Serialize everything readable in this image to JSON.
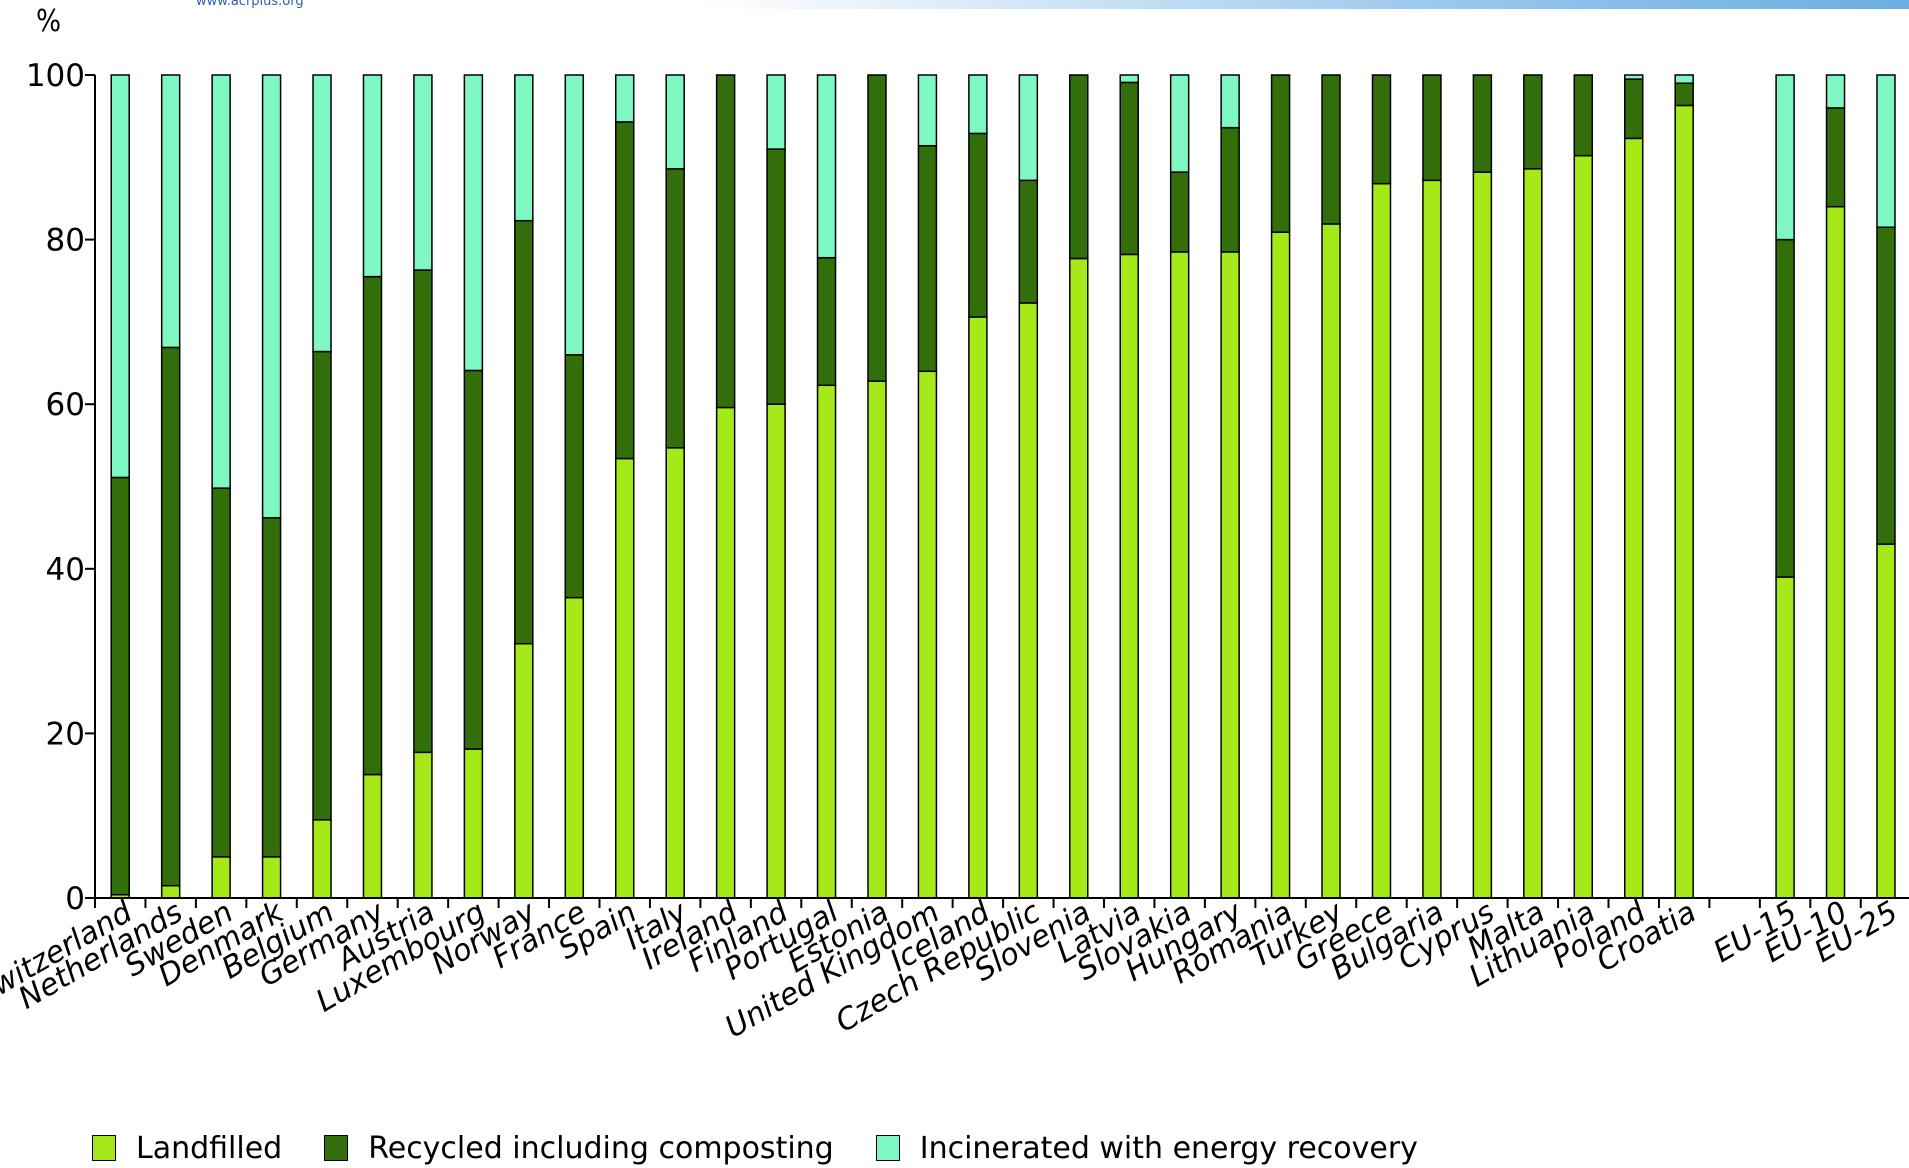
{
  "header": {
    "url": "www.acrplus.org"
  },
  "colors": {
    "landfilled": "#a5ea18",
    "recycled": "#326e0a",
    "incinerated": "#7ff7c2"
  },
  "chart_data": {
    "type": "bar",
    "stacked": true,
    "ylabel": "%",
    "ylim": [
      0,
      100
    ],
    "yticks": [
      0,
      20,
      40,
      60,
      80,
      100
    ],
    "grid": false,
    "legend_position": "bottom",
    "categories": [
      "Switzerland",
      "Netherlands",
      "Sweden",
      "Denmark",
      "Belgium",
      "Germany",
      "Austria",
      "Luxembourg",
      "Norway",
      "France",
      "Spain",
      "Italy",
      "Ireland",
      "Finland",
      "Portugal",
      "Estonia",
      "United Kingdom",
      "Iceland",
      "Czech Republic",
      "Slovenia",
      "Latvia",
      "Slovakia",
      "Hungary",
      "Romania",
      "Turkey",
      "Greece",
      "Bulgaria",
      "Cyprus",
      "Malta",
      "Lithuania",
      "Poland",
      "Croatia",
      "",
      "EU-15",
      "EU-10",
      "EU-25"
    ],
    "series": [
      {
        "name": "Landfilled",
        "values": [
          0.4,
          1.5,
          5,
          5,
          9.5,
          15,
          17.7,
          18.1,
          30.9,
          36.5,
          53.4,
          54.7,
          59.6,
          60,
          62.3,
          62.8,
          64,
          70.6,
          72.3,
          77.7,
          78.2,
          78.5,
          78.5,
          80.9,
          81.9,
          86.8,
          87.2,
          88.2,
          88.6,
          90.2,
          92.3,
          96.3,
          null,
          39,
          84,
          43
        ]
      },
      {
        "name": "Recycled including composting",
        "values": [
          50.7,
          65.4,
          44.8,
          41.2,
          56.9,
          60.5,
          58.6,
          46,
          51.4,
          29.5,
          40.9,
          33.9,
          40.4,
          31,
          15.5,
          37.2,
          27.4,
          22.3,
          14.9,
          22.3,
          20.9,
          9.7,
          15.1,
          19.1,
          18.1,
          13.2,
          12.8,
          11.8,
          11.4,
          9.8,
          7.2,
          2.7,
          null,
          41,
          12,
          38.5
        ]
      },
      {
        "name": "Incinerated with energy recovery",
        "values": [
          48.9,
          33.1,
          50.2,
          53.8,
          33.6,
          24.5,
          23.7,
          35.9,
          17.7,
          34,
          5.7,
          11.4,
          0,
          9,
          22.2,
          0,
          8.6,
          7.1,
          12.8,
          0,
          0.9,
          11.8,
          6.4,
          0,
          0,
          0,
          0,
          0,
          0,
          0,
          0.5,
          1,
          null,
          20,
          4,
          18.5
        ]
      }
    ]
  }
}
